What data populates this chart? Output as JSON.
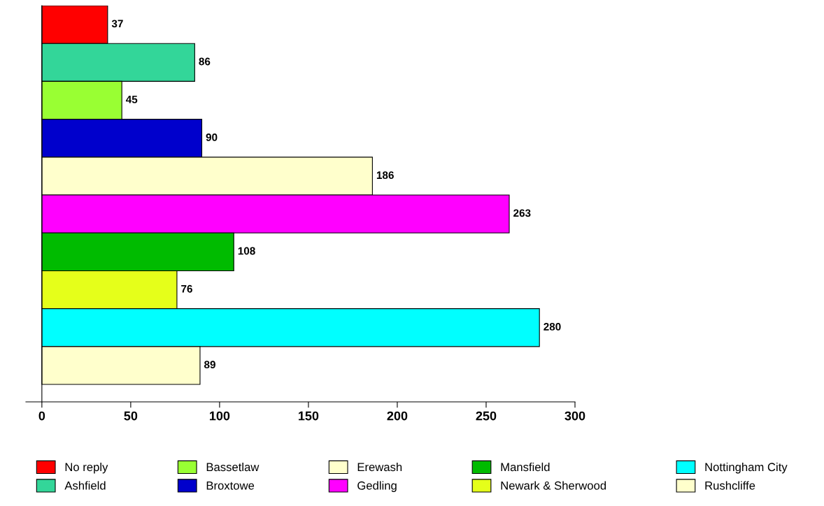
{
  "chart_data": {
    "type": "bar",
    "orientation": "horizontal",
    "categories": [
      null,
      null,
      null,
      null,
      null,
      null,
      null,
      null,
      null,
      null
    ],
    "series": [
      {
        "name": "No reply",
        "color": "#ff0000",
        "values": [
          37,
          null,
          null,
          null,
          null,
          null,
          null,
          null,
          null,
          null
        ]
      },
      {
        "name": "Ashfield",
        "color": "#33d699",
        "values": [
          null,
          86,
          null,
          null,
          null,
          null,
          null,
          null,
          null,
          null
        ]
      },
      {
        "name": "Bassetlaw",
        "color": "#99ff33",
        "values": [
          null,
          null,
          45,
          null,
          null,
          null,
          null,
          null,
          null,
          null
        ]
      },
      {
        "name": "Broxtowe",
        "color": "#0000cc",
        "values": [
          null,
          null,
          null,
          90,
          null,
          null,
          null,
          null,
          null,
          null
        ]
      },
      {
        "name": "Erewash",
        "color": "#ffffcc",
        "values": [
          null,
          null,
          null,
          null,
          186,
          null,
          null,
          null,
          null,
          null
        ]
      },
      {
        "name": "Gedling",
        "color": "#ff00ff",
        "values": [
          null,
          null,
          null,
          null,
          null,
          263,
          null,
          null,
          null,
          null
        ]
      },
      {
        "name": "Mansfield",
        "color": "#00bb00",
        "values": [
          null,
          null,
          null,
          null,
          null,
          null,
          108,
          null,
          null,
          null
        ]
      },
      {
        "name": "Newark & Sherwood",
        "color": "#e5ff1a",
        "values": [
          null,
          null,
          null,
          null,
          null,
          null,
          null,
          76,
          null,
          null
        ]
      },
      {
        "name": "Nottingham City",
        "color": "#00ffff",
        "values": [
          null,
          null,
          null,
          null,
          null,
          null,
          null,
          null,
          280,
          null
        ]
      },
      {
        "name": "Rushcliffe",
        "color": "#ffffcc",
        "values": [
          null,
          null,
          null,
          null,
          null,
          null,
          null,
          null,
          null,
          89
        ]
      }
    ],
    "xlim": [
      -9,
      300
    ],
    "xticks": [
      0,
      50,
      100,
      150,
      200,
      250,
      300
    ],
    "data_labels": true,
    "legend": "bottom"
  }
}
